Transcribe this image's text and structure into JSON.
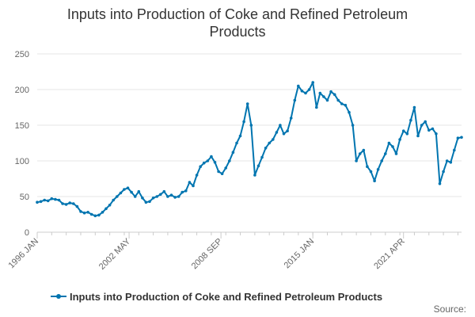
{
  "chart_data": {
    "type": "line",
    "title_lines": [
      "Inputs into Production of Coke and Refined Petroleum",
      "Products"
    ],
    "xlabel": "",
    "ylabel": "",
    "ylim": [
      0,
      250
    ],
    "yticks": [
      0,
      50,
      100,
      150,
      200,
      250
    ],
    "xticks": [
      {
        "label": "1996 JAN",
        "x": "1996-01"
      },
      {
        "label": "2002 MAY",
        "x": "2002-05"
      },
      {
        "label": "2008 SEP",
        "x": "2008-09"
      },
      {
        "label": "2015 JAN",
        "x": "2015-01"
      },
      {
        "label": "2021 APR",
        "x": "2021-04"
      }
    ],
    "grid": true,
    "legend_position": "bottom",
    "color": "#0075b0",
    "series": [
      {
        "name": "Inputs into Production of Coke and Refined Petroleum Products",
        "points": [
          [
            "1996-01",
            42
          ],
          [
            "1996-04",
            43
          ],
          [
            "1996-07",
            45
          ],
          [
            "1996-10",
            44
          ],
          [
            "1997-01",
            47
          ],
          [
            "1997-04",
            46
          ],
          [
            "1997-07",
            45
          ],
          [
            "1997-10",
            40
          ],
          [
            "1998-01",
            39
          ],
          [
            "1998-04",
            41
          ],
          [
            "1998-07",
            40
          ],
          [
            "1998-10",
            36
          ],
          [
            "1999-01",
            29
          ],
          [
            "1999-04",
            27
          ],
          [
            "1999-07",
            28
          ],
          [
            "1999-10",
            25
          ],
          [
            "2000-01",
            23
          ],
          [
            "2000-04",
            24
          ],
          [
            "2000-07",
            28
          ],
          [
            "2000-10",
            33
          ],
          [
            "2001-01",
            38
          ],
          [
            "2001-04",
            45
          ],
          [
            "2001-07",
            50
          ],
          [
            "2001-10",
            55
          ],
          [
            "2002-01",
            60
          ],
          [
            "2002-04",
            62
          ],
          [
            "2002-07",
            56
          ],
          [
            "2002-10",
            50
          ],
          [
            "2003-01",
            57
          ],
          [
            "2003-04",
            48
          ],
          [
            "2003-07",
            42
          ],
          [
            "2003-10",
            43
          ],
          [
            "2004-01",
            48
          ],
          [
            "2004-04",
            50
          ],
          [
            "2004-07",
            53
          ],
          [
            "2004-10",
            57
          ],
          [
            "2005-01",
            50
          ],
          [
            "2005-04",
            52
          ],
          [
            "2005-07",
            49
          ],
          [
            "2005-10",
            50
          ],
          [
            "2006-01",
            56
          ],
          [
            "2006-04",
            58
          ],
          [
            "2006-07",
            70
          ],
          [
            "2006-10",
            65
          ],
          [
            "2007-01",
            80
          ],
          [
            "2007-04",
            92
          ],
          [
            "2007-07",
            97
          ],
          [
            "2007-10",
            100
          ],
          [
            "2008-01",
            106
          ],
          [
            "2008-04",
            98
          ],
          [
            "2008-07",
            85
          ],
          [
            "2008-10",
            82
          ],
          [
            "2009-01",
            90
          ],
          [
            "2009-04",
            100
          ],
          [
            "2009-07",
            112
          ],
          [
            "2009-10",
            125
          ],
          [
            "2010-01",
            135
          ],
          [
            "2010-04",
            155
          ],
          [
            "2010-07",
            180
          ],
          [
            "2010-10",
            150
          ],
          [
            "2011-01",
            80
          ],
          [
            "2011-04",
            93
          ],
          [
            "2011-07",
            105
          ],
          [
            "2011-10",
            118
          ],
          [
            "2012-01",
            125
          ],
          [
            "2012-04",
            130
          ],
          [
            "2012-07",
            140
          ],
          [
            "2012-10",
            150
          ],
          [
            "2013-01",
            138
          ],
          [
            "2013-04",
            142
          ],
          [
            "2013-07",
            160
          ],
          [
            "2013-10",
            185
          ],
          [
            "2014-01",
            205
          ],
          [
            "2014-04",
            198
          ],
          [
            "2014-07",
            195
          ],
          [
            "2014-10",
            200
          ],
          [
            "2015-01",
            210
          ],
          [
            "2015-04",
            175
          ],
          [
            "2015-07",
            195
          ],
          [
            "2015-10",
            190
          ],
          [
            "2016-01",
            185
          ],
          [
            "2016-04",
            197
          ],
          [
            "2016-07",
            193
          ],
          [
            "2016-10",
            185
          ],
          [
            "2017-01",
            180
          ],
          [
            "2017-04",
            178
          ],
          [
            "2017-07",
            168
          ],
          [
            "2017-10",
            150
          ],
          [
            "2018-01",
            100
          ],
          [
            "2018-04",
            110
          ],
          [
            "2018-07",
            115
          ],
          [
            "2018-10",
            92
          ],
          [
            "2019-01",
            85
          ],
          [
            "2019-04",
            72
          ],
          [
            "2019-07",
            88
          ],
          [
            "2019-10",
            100
          ],
          [
            "2020-01",
            110
          ],
          [
            "2020-04",
            125
          ],
          [
            "2020-07",
            120
          ],
          [
            "2020-10",
            110
          ],
          [
            "2021-01",
            130
          ],
          [
            "2021-04",
            142
          ],
          [
            "2021-07",
            138
          ],
          [
            "2021-10",
            157
          ],
          [
            "2022-01",
            175
          ],
          [
            "2022-04",
            135
          ],
          [
            "2022-07",
            150
          ],
          [
            "2022-10",
            155
          ],
          [
            "2023-01",
            143
          ],
          [
            "2023-04",
            145
          ],
          [
            "2023-07",
            138
          ],
          [
            "2023-10",
            68
          ],
          [
            "2024-01",
            85
          ],
          [
            "2024-04",
            100
          ],
          [
            "2024-07",
            98
          ],
          [
            "2024-10",
            115
          ],
          [
            "2025-01",
            132
          ],
          [
            "2025-04",
            133
          ]
        ]
      }
    ],
    "source_label": "Source:"
  }
}
